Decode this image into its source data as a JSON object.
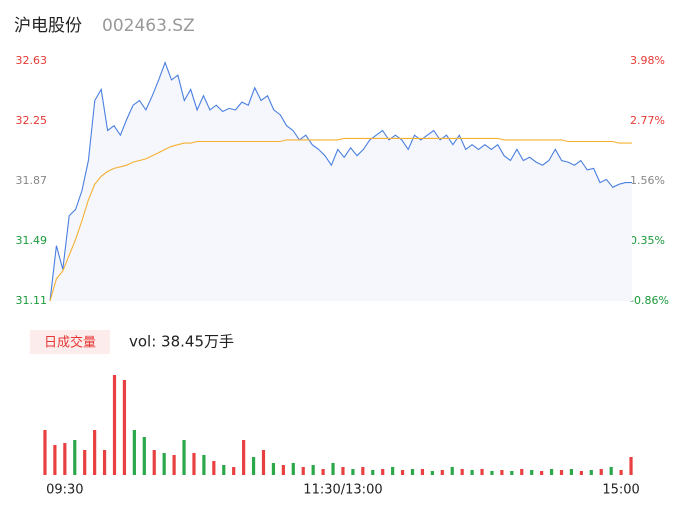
{
  "chart_data": [
    {
      "type": "line",
      "title": "沪电股份",
      "subtitle": "002463.SZ",
      "ylim": [
        31.11,
        32.63
      ],
      "yticks": [
        32.63,
        32.25,
        31.87,
        31.49,
        31.11
      ],
      "ytick_colors": [
        "#e53935",
        "#e53935",
        "#888888",
        "#1a9a3a",
        "#1a9a3a"
      ],
      "y2lim": [
        -0.86,
        3.98
      ],
      "y2ticks": [
        {
          "value": 3.98,
          "label": "3.98%"
        },
        {
          "value": 2.77,
          "label": "2.77%"
        },
        {
          "value": 1.56,
          "label": "1.56%"
        },
        {
          "value": 0.35,
          "label": "0.35%"
        },
        {
          "value": -0.86,
          "label": "-0.86%"
        }
      ],
      "area_color": "#f5f7fc",
      "series": [
        {
          "color": "#4a7fe0",
          "values": [
            31.11,
            31.46,
            31.31,
            31.65,
            31.69,
            31.81,
            32.0,
            32.38,
            32.45,
            32.19,
            32.22,
            32.16,
            32.26,
            32.35,
            32.38,
            32.32,
            32.41,
            32.51,
            32.62,
            32.51,
            32.54,
            32.38,
            32.45,
            32.32,
            32.41,
            32.32,
            32.35,
            32.31,
            32.33,
            32.32,
            32.37,
            32.35,
            32.46,
            32.38,
            32.41,
            32.32,
            32.29,
            32.22,
            32.19,
            32.13,
            32.16,
            32.1,
            32.07,
            32.03,
            31.97,
            32.07,
            32.02,
            32.08,
            32.03,
            32.07,
            32.13,
            32.16,
            32.19,
            32.13,
            32.16,
            32.13,
            32.07,
            32.16,
            32.13,
            32.16,
            32.19,
            32.13,
            32.16,
            32.1,
            32.16,
            32.07,
            32.1,
            32.07,
            32.1,
            32.07,
            32.1,
            32.03,
            32.0,
            32.07,
            32.0,
            32.02,
            31.99,
            31.97,
            32.0,
            32.07,
            32.0,
            31.99,
            31.97,
            32.0,
            31.94,
            31.95,
            31.86,
            31.88,
            31.83,
            31.85,
            31.86,
            31.86
          ]
        },
        {
          "color": "#f5b031",
          "values": [
            31.11,
            31.25,
            31.3,
            31.4,
            31.5,
            31.62,
            31.75,
            31.85,
            31.9,
            31.93,
            31.95,
            31.96,
            31.97,
            31.99,
            32.0,
            32.01,
            32.03,
            32.05,
            32.07,
            32.09,
            32.1,
            32.11,
            32.11,
            32.12,
            32.12,
            32.12,
            32.12,
            32.12,
            32.12,
            32.12,
            32.12,
            32.12,
            32.12,
            32.12,
            32.12,
            32.12,
            32.12,
            32.13,
            32.13,
            32.13,
            32.13,
            32.13,
            32.13,
            32.13,
            32.13,
            32.13,
            32.14,
            32.14,
            32.14,
            32.14,
            32.14,
            32.14,
            32.14,
            32.14,
            32.14,
            32.14,
            32.14,
            32.14,
            32.14,
            32.14,
            32.14,
            32.14,
            32.14,
            32.14,
            32.14,
            32.14,
            32.14,
            32.14,
            32.14,
            32.14,
            32.14,
            32.13,
            32.13,
            32.13,
            32.13,
            32.13,
            32.13,
            32.13,
            32.13,
            32.13,
            32.13,
            32.12,
            32.12,
            32.12,
            32.12,
            32.12,
            32.12,
            32.12,
            32.12,
            32.11,
            32.11,
            32.11
          ]
        }
      ]
    },
    {
      "type": "bar",
      "title": "日成交量",
      "annotation": "vol: 38.45万手",
      "categories": [
        null,
        null,
        "09:30",
        null,
        null,
        null,
        null,
        null,
        null,
        null,
        null,
        null,
        null,
        null,
        null,
        null,
        null,
        null,
        null,
        null,
        null,
        null,
        null,
        null,
        null,
        null,
        null,
        null,
        null,
        null,
        "11:30/13:00",
        null,
        null,
        null,
        null,
        null,
        null,
        null,
        null,
        null,
        null,
        null,
        null,
        null,
        null,
        null,
        null,
        null,
        null,
        null,
        null,
        null,
        null,
        null,
        null,
        null,
        null,
        null,
        "15:00",
        null
      ],
      "values": [
        45,
        30,
        32,
        35,
        25,
        45,
        25,
        100,
        95,
        45,
        38,
        25,
        22,
        20,
        35,
        22,
        20,
        14,
        10,
        8,
        35,
        18,
        25,
        12,
        10,
        12,
        8,
        10,
        6,
        12,
        8,
        6,
        8,
        5,
        6,
        8,
        5,
        6,
        6,
        4,
        5,
        8,
        6,
        5,
        6,
        4,
        5,
        4,
        6,
        5,
        4,
        6,
        5,
        6,
        4,
        5,
        6,
        8,
        5,
        18
      ],
      "up": [
        true,
        true,
        true,
        false,
        true,
        true,
        true,
        true,
        true,
        false,
        false,
        true,
        false,
        true,
        false,
        true,
        false,
        true,
        false,
        true,
        true,
        false,
        true,
        false,
        true,
        false,
        true,
        false,
        true,
        false,
        true,
        false,
        true,
        false,
        true,
        false,
        true,
        false,
        true,
        false,
        true,
        false,
        true,
        false,
        true,
        false,
        true,
        false,
        true,
        false,
        true,
        false,
        true,
        false,
        true,
        false,
        true,
        false,
        true,
        true
      ],
      "up_color": "#e84040",
      "down_color": "#2aa84a"
    }
  ]
}
